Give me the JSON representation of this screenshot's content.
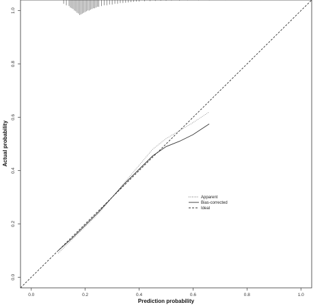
{
  "chart_data": {
    "type": "line",
    "xlabel": "Prediction probability",
    "ylabel": "Actual probability",
    "xlim": [
      -0.04,
      1.04
    ],
    "ylim": [
      -0.04,
      1.04
    ],
    "x_ticks": [
      "0.0",
      "0.2",
      "0.4",
      "0.6",
      "0.8",
      "1.0"
    ],
    "y_ticks": [
      "0.0",
      "0.2",
      "0.4",
      "0.6",
      "0.8",
      "1.0"
    ],
    "grid": false,
    "legend_position": "center-right",
    "legend": [
      {
        "label": "Apparent",
        "style": "dotted"
      },
      {
        "label": "Bias-corrected",
        "style": "solid"
      },
      {
        "label": "Ideal",
        "style": "dashed"
      }
    ],
    "series": [
      {
        "name": "Apparent",
        "style": "dotted",
        "color": "#888888",
        "points": [
          [
            0.1,
            0.09
          ],
          [
            0.15,
            0.14
          ],
          [
            0.2,
            0.19
          ],
          [
            0.25,
            0.24
          ],
          [
            0.3,
            0.3
          ],
          [
            0.35,
            0.36
          ],
          [
            0.4,
            0.42
          ],
          [
            0.45,
            0.48
          ],
          [
            0.5,
            0.52
          ],
          [
            0.55,
            0.55
          ],
          [
            0.6,
            0.58
          ],
          [
            0.66,
            0.62
          ]
        ]
      },
      {
        "name": "Bias-corrected",
        "style": "solid",
        "color": "#333333",
        "points": [
          [
            0.1,
            0.1
          ],
          [
            0.15,
            0.145
          ],
          [
            0.2,
            0.195
          ],
          [
            0.25,
            0.245
          ],
          [
            0.3,
            0.3
          ],
          [
            0.35,
            0.355
          ],
          [
            0.4,
            0.405
          ],
          [
            0.45,
            0.455
          ],
          [
            0.5,
            0.49
          ],
          [
            0.55,
            0.51
          ],
          [
            0.6,
            0.535
          ],
          [
            0.66,
            0.575
          ]
        ]
      },
      {
        "name": "Ideal",
        "style": "dashed",
        "color": "#333333",
        "points": [
          [
            -0.04,
            -0.04
          ],
          [
            1.04,
            1.04
          ]
        ]
      }
    ],
    "rug": {
      "description_values": [
        0.12,
        0.13,
        0.14,
        0.145,
        0.15,
        0.155,
        0.16,
        0.165,
        0.17,
        0.175,
        0.18,
        0.185,
        0.19,
        0.195,
        0.2,
        0.205,
        0.21,
        0.215,
        0.22,
        0.225,
        0.23,
        0.235,
        0.24,
        0.245,
        0.25,
        0.26,
        0.27,
        0.28,
        0.29,
        0.3,
        0.31,
        0.32,
        0.33,
        0.34,
        0.35,
        0.36,
        0.37,
        0.38,
        0.39,
        0.4,
        0.42,
        0.44,
        0.46,
        0.48,
        0.5,
        0.52,
        0.55,
        0.58,
        0.62,
        0.66,
        0.72,
        0.78,
        0.85,
        0.92
      ],
      "heights": [
        0.25,
        0.35,
        0.4,
        0.5,
        0.55,
        0.6,
        0.7,
        0.75,
        0.85,
        0.9,
        1.0,
        0.95,
        0.9,
        0.85,
        0.8,
        0.75,
        0.7,
        0.7,
        0.65,
        0.6,
        0.55,
        0.55,
        0.5,
        0.45,
        0.45,
        0.4,
        0.35,
        0.35,
        0.3,
        0.3,
        0.25,
        0.25,
        0.2,
        0.2,
        0.18,
        0.16,
        0.14,
        0.12,
        0.1,
        0.1,
        0.08,
        0.07,
        0.06,
        0.05,
        0.05,
        0.04,
        0.04,
        0.03,
        0.03,
        0.03,
        0.02,
        0.02,
        0.02,
        0.02
      ]
    }
  }
}
